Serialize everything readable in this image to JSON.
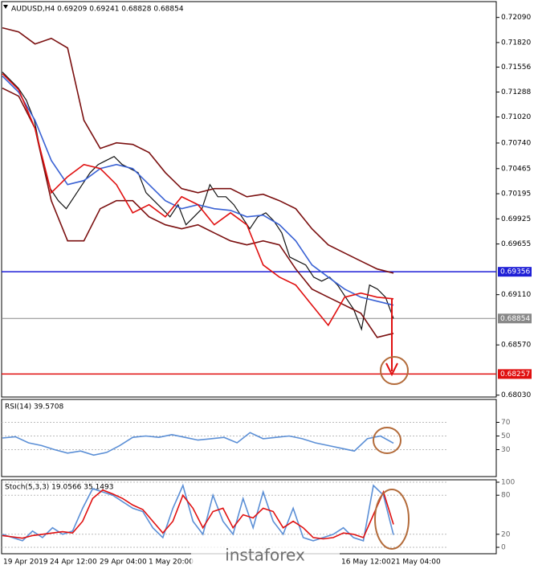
{
  "chart_data": [
    {
      "type": "line",
      "title": "AUDUSD,H4  0.69209 0.69241 0.68828 0.68854",
      "ylim": [
        0.6801,
        0.7226
      ],
      "yticks": [
        {
          "value": 0.7209,
          "label": "0.72090"
        },
        {
          "value": 0.7182,
          "label": "0.71820"
        },
        0.71556,
        0.71288,
        {
          "value": 0.7102,
          "label": "0.71020"
        },
        {
          "value": 0.7074,
          "label": "0.70740"
        },
        0.70465,
        0.70195,
        0.69925,
        0.69655,
        {
          "value": 0.6911,
          "label": "0.69110"
        },
        {
          "value": 0.6857,
          "label": "0.68570"
        },
        {
          "value": 0.6803,
          "label": "0.68030"
        }
      ],
      "series": [
        {
          "color": "#111111",
          "values": [
            0.71502,
            0.71416,
            0.7133,
            0.712,
            0.70984,
            0.70552,
            0.7025,
            0.7012,
            0.70034,
            0.70163,
            0.70293,
            0.70422,
            0.70509,
            0.70552,
            0.70595,
            0.70509,
            0.70466,
            0.70422,
            0.70206,
            0.7012,
            0.70034,
            0.69947,
            0.70077,
            0.69861,
            0.69947,
            0.70034,
            0.70293,
            0.70163,
            0.70163,
            0.70077,
            0.69947,
            0.69818,
            0.69947,
            0.6999,
            0.69904,
            0.69774,
            0.69515,
            0.69472,
            0.69429,
            0.69299,
            0.69256,
            0.69299,
            0.69213,
            0.69083,
            0.68954,
            0.68738,
            0.69213,
            0.6917,
            0.69083,
            0.68854
          ]
        },
        {
          "color": "#7b1010",
          "values": [
            0.71978,
            0.71934,
            0.71805,
            0.71865,
            0.71762,
            0.70984,
            0.70682,
            0.70742,
            0.70725,
            0.70638,
            0.70422,
            0.7025,
            0.70206,
            0.7025,
            0.7025,
            0.70163,
            0.70189,
            0.7012,
            0.70034,
            0.69818,
            0.69645,
            0.69558,
            0.69472,
            0.69386,
            0.69342
          ]
        },
        {
          "color": "#7b1010",
          "values": [
            0.7133,
            0.71243,
            0.70898,
            0.7012,
            0.69688,
            0.69688,
            0.70034,
            0.7012,
            0.7012,
            0.69947,
            0.69861,
            0.69818,
            0.69861,
            0.69774,
            0.69688,
            0.69645,
            0.69688,
            0.69645,
            0.69386,
            0.6917,
            0.69083,
            0.68997,
            0.6891,
            0.68651,
            0.68694
          ]
        },
        {
          "color": "#3a62d4",
          "values": [
            0.71459,
            0.71286,
            0.70984,
            0.70552,
            0.70293,
            0.70336,
            0.70466,
            0.70509,
            0.70466,
            0.70293,
            0.7012,
            0.70034,
            0.70077,
            0.70034,
            0.70016,
            0.69947,
            0.69965,
            0.69861,
            0.69688,
            0.69429,
            0.69299,
            0.6917,
            0.69083,
            0.6904,
            0.68997
          ]
        },
        {
          "color": "#e01010",
          "values": [
            0.71485,
            0.71312,
            0.70898,
            0.70206,
            0.70379,
            0.70509,
            0.70466,
            0.70293,
            0.6999,
            0.70077,
            0.69947,
            0.70163,
            0.70077,
            0.69861,
            0.6999,
            0.69861,
            0.69429,
            0.69299,
            0.69213,
            0.68997,
            0.68781,
            0.69083,
            0.69127,
            0.69083,
            0.69066
          ]
        }
      ],
      "levels": [
        {
          "value": 0.69356,
          "color": "#1f1fd6"
        },
        {
          "value": 0.68854,
          "color": "#888888"
        },
        {
          "value": 0.68257,
          "color": "#e01010"
        }
      ]
    },
    {
      "type": "line",
      "title": "RSI(14) 39.5708",
      "ylim": [
        0,
        100
      ],
      "yticks": [
        70,
        50,
        30
      ],
      "series": [
        {
          "color": "#5b8fd6",
          "values": [
            47,
            49,
            40,
            36,
            30,
            25,
            28,
            22,
            26,
            36,
            48,
            50,
            48,
            52,
            48,
            44,
            46,
            48,
            40,
            55,
            46,
            48,
            50,
            46,
            40,
            36,
            32,
            28,
            46,
            50,
            39.57
          ]
        }
      ]
    },
    {
      "type": "line",
      "title": "Stoch(5,3,3) 19.0566 35.1493",
      "ylim": [
        0,
        100
      ],
      "yticks": [
        100,
        80,
        20,
        0
      ],
      "series": [
        {
          "color": "#5b8fd6",
          "values": [
            20,
            15,
            10,
            25,
            15,
            30,
            20,
            25,
            60,
            90,
            85,
            80,
            70,
            60,
            55,
            30,
            15,
            60,
            95,
            40,
            20,
            80,
            40,
            20,
            75,
            30,
            85,
            40,
            20,
            60,
            15,
            10,
            15,
            20,
            30,
            15,
            10,
            95,
            80,
            19.06
          ]
        },
        {
          "color": "#e01010",
          "values": [
            18,
            16,
            14,
            18,
            20,
            22,
            24,
            22,
            40,
            75,
            88,
            82,
            75,
            65,
            58,
            40,
            22,
            40,
            80,
            60,
            30,
            55,
            60,
            30,
            50,
            45,
            60,
            55,
            30,
            40,
            30,
            15,
            13,
            15,
            22,
            20,
            15,
            50,
            85,
            35.15
          ]
        }
      ],
      "x_labels": [
        "19 Apr 2019",
        "24 Apr 12:00",
        "29 Apr 04:00",
        "1 May 20:00",
        "16 May 12:00",
        "21 May 04:00"
      ]
    }
  ],
  "watermark": "instaforex"
}
